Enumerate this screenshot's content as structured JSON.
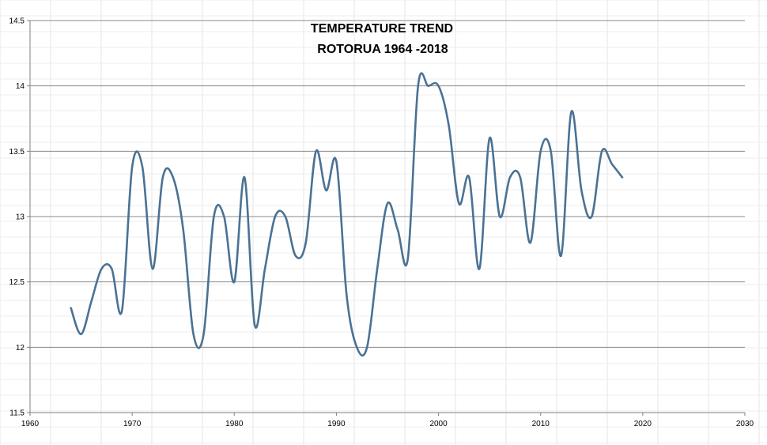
{
  "chart_data": {
    "type": "line",
    "title": "TEMPERATURE TREND",
    "subtitle": "ROTORUA 1964 -2018",
    "xlabel": "",
    "ylabel": "",
    "xlim": [
      1960,
      2030
    ],
    "ylim": [
      11.5,
      14.5
    ],
    "x_ticks": [
      "1960",
      "1970",
      "1980",
      "1990",
      "2000",
      "2010",
      "2020",
      "2030"
    ],
    "y_ticks": [
      "11.5",
      "12",
      "12.5",
      "13",
      "13.5",
      "14",
      "14.5"
    ],
    "grid": "horizontal",
    "legend": "none",
    "line_color": "#4A7294",
    "series": [
      {
        "x": [
          1964,
          1965,
          1966,
          1967,
          1968,
          1969,
          1970,
          1971,
          1972,
          1973,
          1974,
          1975,
          1976,
          1977,
          1978,
          1979,
          1980,
          1981,
          1982,
          1983,
          1984,
          1985,
          1986,
          1987,
          1988,
          1989,
          1990,
          1991,
          1992,
          1993,
          1994,
          1995,
          1996,
          1997,
          1998,
          1999,
          2000,
          2001,
          2002,
          2003,
          2004,
          2005,
          2006,
          2007,
          2008,
          2009,
          2010,
          2011,
          2012,
          2013,
          2014,
          2015,
          2016,
          2017,
          2018
        ],
        "y": [
          12.3,
          12.1,
          12.35,
          12.6,
          12.6,
          12.28,
          13.38,
          13.38,
          12.6,
          13.3,
          13.3,
          12.9,
          12.1,
          12.1,
          13.0,
          13.0,
          12.5,
          13.3,
          12.17,
          12.6,
          13.0,
          13.0,
          12.7,
          12.8,
          13.5,
          13.2,
          13.42,
          12.4,
          12.0,
          12.0,
          12.6,
          13.1,
          12.9,
          12.68,
          14.0,
          14.0,
          14.0,
          13.7,
          13.1,
          13.3,
          12.6,
          13.6,
          13.0,
          13.3,
          13.3,
          12.8,
          13.5,
          13.5,
          12.7,
          13.8,
          13.2,
          13.0,
          13.5,
          13.4,
          13.3
        ]
      }
    ]
  }
}
